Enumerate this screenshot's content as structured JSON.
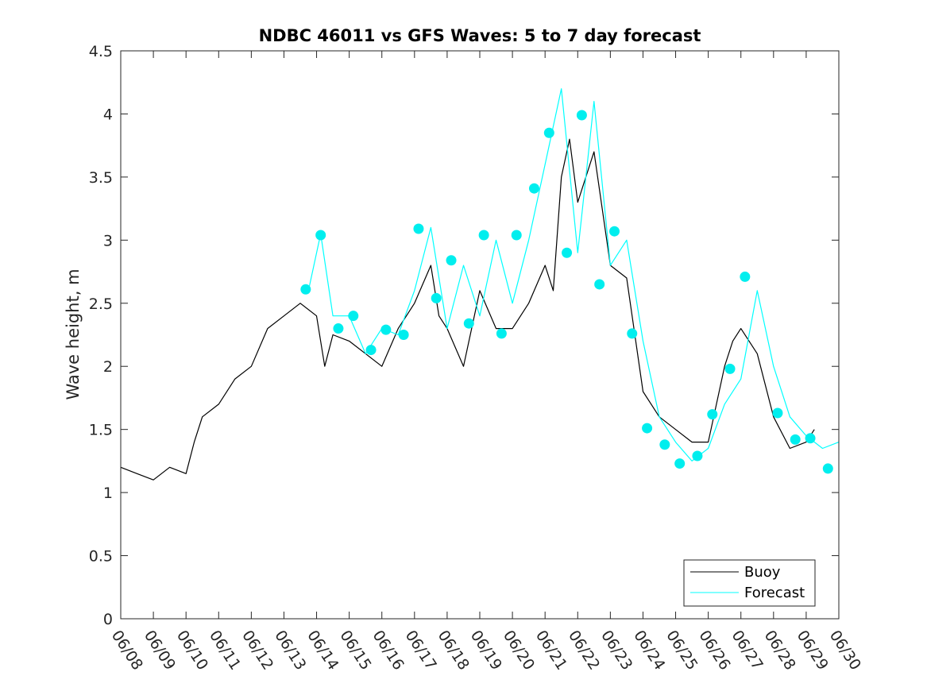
{
  "chart_data": {
    "type": "line",
    "title": "NDBC 46011 vs GFS Waves: 5 to 7 day forecast",
    "xlabel": "",
    "ylabel": "Wave height, m",
    "ylim": [
      0,
      4.5
    ],
    "yticks": [
      0,
      0.5,
      1,
      1.5,
      2,
      2.5,
      3,
      3.5,
      4,
      4.5
    ],
    "ytick_labels": [
      "0",
      "0.5",
      "1",
      "1.5",
      "2",
      "2.5",
      "3",
      "3.5",
      "4",
      "4.5"
    ],
    "xlim": [
      "06/08",
      "06/30"
    ],
    "xtick_labels": [
      "06/08",
      "06/09",
      "06/10",
      "06/11",
      "06/12",
      "06/13",
      "06/14",
      "06/15",
      "06/16",
      "06/17",
      "06/18",
      "06/19",
      "06/20",
      "06/21",
      "06/22",
      "06/23",
      "06/24",
      "06/25",
      "06/26",
      "06/27",
      "06/28",
      "06/29",
      "06/30"
    ],
    "grid": false,
    "legend_position": "bottom-right",
    "colors": {
      "buoy": "#000000",
      "forecast": "#00ffff",
      "marker": "#00eeee"
    },
    "series": [
      {
        "name": "Buoy",
        "style": "line",
        "x": [
          "06/08 00:00",
          "06/08 12:00",
          "06/09 00:00",
          "06/09 12:00",
          "06/10 00:00",
          "06/10 06:00",
          "06/10 12:00",
          "06/11 00:00",
          "06/11 12:00",
          "06/12 00:00",
          "06/12 12:00",
          "06/13 00:00",
          "06/13 12:00",
          "06/14 00:00",
          "06/14 06:00",
          "06/14 12:00",
          "06/15 00:00",
          "06/15 12:00",
          "06/16 00:00",
          "06/16 12:00",
          "06/17 00:00",
          "06/17 12:00",
          "06/17 18:00",
          "06/18 00:00",
          "06/18 12:00",
          "06/19 00:00",
          "06/19 12:00",
          "06/20 00:00",
          "06/20 12:00",
          "06/21 00:00",
          "06/21 06:00",
          "06/21 12:00",
          "06/21 18:00",
          "06/22 00:00",
          "06/22 12:00",
          "06/23 00:00",
          "06/23 12:00",
          "06/24 00:00",
          "06/24 12:00",
          "06/25 00:00",
          "06/25 12:00",
          "06/26 00:00",
          "06/26 12:00",
          "06/26 18:00",
          "06/27 00:00",
          "06/27 12:00",
          "06/28 00:00",
          "06/28 12:00",
          "06/29 00:00",
          "06/29 06:00"
        ],
        "y": [
          1.2,
          1.15,
          1.1,
          1.2,
          1.15,
          1.4,
          1.6,
          1.7,
          1.9,
          2.0,
          2.3,
          2.4,
          2.5,
          2.4,
          2.0,
          2.25,
          2.2,
          2.1,
          2.0,
          2.3,
          2.5,
          2.8,
          2.4,
          2.3,
          2.0,
          2.6,
          2.3,
          2.3,
          2.5,
          2.8,
          2.6,
          3.5,
          3.8,
          3.3,
          3.7,
          2.8,
          2.7,
          1.8,
          1.6,
          1.5,
          1.4,
          1.4,
          2.0,
          2.2,
          2.3,
          2.1,
          1.6,
          1.35,
          1.4,
          1.5
        ]
      },
      {
        "name": "Forecast",
        "style": "line",
        "x": [
          "06/13 18:00",
          "06/14 03:00",
          "06/14 12:00",
          "06/15 00:00",
          "06/15 12:00",
          "06/16 00:00",
          "06/16 12:00",
          "06/17 00:00",
          "06/17 12:00",
          "06/18 00:00",
          "06/18 12:00",
          "06/19 00:00",
          "06/19 12:00",
          "06/20 00:00",
          "06/20 12:00",
          "06/21 00:00",
          "06/21 12:00",
          "06/22 00:00",
          "06/22 12:00",
          "06/23 00:00",
          "06/23 12:00",
          "06/24 00:00",
          "06/24 12:00",
          "06/25 00:00",
          "06/25 12:00",
          "06/26 00:00",
          "06/26 12:00",
          "06/27 00:00",
          "06/27 12:00",
          "06/28 00:00",
          "06/28 12:00",
          "06/29 00:00",
          "06/29 12:00",
          "06/30 00:00"
        ],
        "y": [
          2.6,
          3.05,
          2.4,
          2.4,
          2.1,
          2.3,
          2.25,
          2.6,
          3.1,
          2.3,
          2.8,
          2.4,
          3.0,
          2.5,
          3.0,
          3.6,
          4.2,
          2.9,
          4.1,
          2.8,
          3.0,
          2.2,
          1.6,
          1.4,
          1.25,
          1.35,
          1.7,
          1.9,
          2.6,
          2.0,
          1.6,
          1.45,
          1.35,
          1.4
        ]
      },
      {
        "name": "",
        "style": "markers",
        "x": [
          "06/13 16:00",
          "06/14 03:00",
          "06/14 16:00",
          "06/15 03:00",
          "06/15 16:00",
          "06/16 03:00",
          "06/16 16:00",
          "06/17 03:00",
          "06/17 16:00",
          "06/18 03:00",
          "06/18 16:00",
          "06/19 03:00",
          "06/19 16:00",
          "06/20 03:00",
          "06/20 16:00",
          "06/21 03:00",
          "06/21 16:00",
          "06/22 03:00",
          "06/22 16:00",
          "06/23 03:00",
          "06/23 16:00",
          "06/24 03:00",
          "06/24 16:00",
          "06/25 03:00",
          "06/25 16:00",
          "06/26 03:00",
          "06/26 16:00",
          "06/27 03:00",
          "06/28 03:00",
          "06/28 16:00",
          "06/29 03:00",
          "06/29 16:00"
        ],
        "y": [
          2.61,
          3.04,
          2.3,
          2.4,
          2.13,
          2.29,
          2.25,
          3.09,
          2.54,
          2.84,
          2.34,
          3.04,
          2.26,
          3.04,
          3.41,
          3.85,
          2.9,
          3.99,
          2.65,
          3.07,
          2.26,
          1.51,
          1.38,
          1.23,
          1.29,
          1.62,
          1.98,
          2.71,
          1.63,
          1.42,
          1.43,
          1.19
        ]
      }
    ]
  }
}
